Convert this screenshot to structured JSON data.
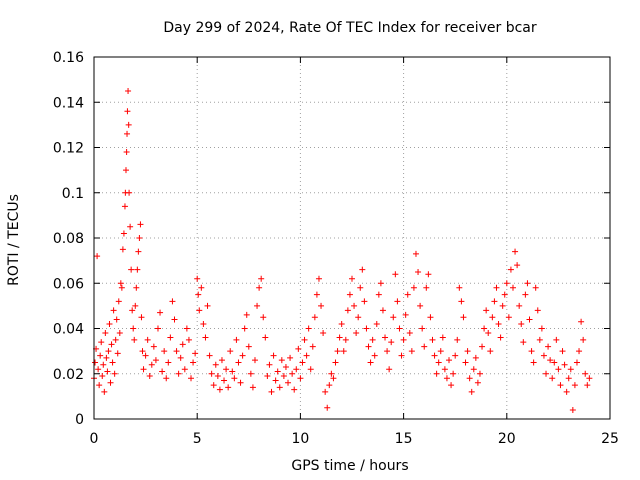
{
  "chart_data": {
    "type": "scatter",
    "title": "Day 299 of 2024, Rate Of TEC Index for receiver bcar",
    "xlabel": "GPS time / hours",
    "ylabel": "ROTI / TECUs",
    "xlim": [
      0,
      25
    ],
    "ylim": [
      0,
      0.16
    ],
    "x_ticks": [
      0,
      5,
      10,
      15,
      20,
      25
    ],
    "x_tick_labels": [
      "0",
      "5",
      "10",
      "15",
      "20",
      "25"
    ],
    "y_ticks": [
      0,
      0.02,
      0.04,
      0.06,
      0.08,
      0.1,
      0.12,
      0.14,
      0.16
    ],
    "y_tick_labels": [
      "0",
      "0.02",
      "0.04",
      "0.06",
      "0.08",
      "0.1",
      "0.12",
      "0.14",
      "0.16"
    ],
    "grid": true,
    "marker": "+",
    "color": "#ff0000",
    "points": [
      [
        0.0,
        0.018
      ],
      [
        0.05,
        0.025
      ],
      [
        0.1,
        0.031
      ],
      [
        0.15,
        0.072
      ],
      [
        0.2,
        0.022
      ],
      [
        0.25,
        0.015
      ],
      [
        0.3,
        0.028
      ],
      [
        0.35,
        0.034
      ],
      [
        0.4,
        0.019
      ],
      [
        0.45,
        0.024
      ],
      [
        0.5,
        0.012
      ],
      [
        0.55,
        0.038
      ],
      [
        0.6,
        0.027
      ],
      [
        0.65,
        0.021
      ],
      [
        0.7,
        0.03
      ],
      [
        0.75,
        0.042
      ],
      [
        0.8,
        0.016
      ],
      [
        0.85,
        0.033
      ],
      [
        0.9,
        0.025
      ],
      [
        0.95,
        0.048
      ],
      [
        1.0,
        0.02
      ],
      [
        1.05,
        0.035
      ],
      [
        1.1,
        0.044
      ],
      [
        1.15,
        0.029
      ],
      [
        1.2,
        0.052
      ],
      [
        1.25,
        0.038
      ],
      [
        1.3,
        0.06
      ],
      [
        1.35,
        0.058
      ],
      [
        1.4,
        0.075
      ],
      [
        1.45,
        0.082
      ],
      [
        1.5,
        0.094
      ],
      [
        1.52,
        0.1
      ],
      [
        1.55,
        0.11
      ],
      [
        1.58,
        0.118
      ],
      [
        1.6,
        0.126
      ],
      [
        1.62,
        0.136
      ],
      [
        1.65,
        0.145
      ],
      [
        1.68,
        0.13
      ],
      [
        1.7,
        0.1
      ],
      [
        1.75,
        0.085
      ],
      [
        1.8,
        0.066
      ],
      [
        1.85,
        0.048
      ],
      [
        1.9,
        0.04
      ],
      [
        1.95,
        0.035
      ],
      [
        2.0,
        0.05
      ],
      [
        2.05,
        0.058
      ],
      [
        2.1,
        0.066
      ],
      [
        2.15,
        0.074
      ],
      [
        2.2,
        0.08
      ],
      [
        2.25,
        0.086
      ],
      [
        2.3,
        0.045
      ],
      [
        2.35,
        0.03
      ],
      [
        2.4,
        0.022
      ],
      [
        2.5,
        0.028
      ],
      [
        2.6,
        0.035
      ],
      [
        2.7,
        0.019
      ],
      [
        2.8,
        0.024
      ],
      [
        2.9,
        0.032
      ],
      [
        3.0,
        0.026
      ],
      [
        3.1,
        0.04
      ],
      [
        3.2,
        0.047
      ],
      [
        3.3,
        0.021
      ],
      [
        3.4,
        0.03
      ],
      [
        3.5,
        0.018
      ],
      [
        3.6,
        0.025
      ],
      [
        3.7,
        0.036
      ],
      [
        3.8,
        0.052
      ],
      [
        3.9,
        0.044
      ],
      [
        4.0,
        0.03
      ],
      [
        4.1,
        0.02
      ],
      [
        4.2,
        0.027
      ],
      [
        4.3,
        0.033
      ],
      [
        4.4,
        0.022
      ],
      [
        4.5,
        0.04
      ],
      [
        4.6,
        0.035
      ],
      [
        4.7,
        0.018
      ],
      [
        4.8,
        0.025
      ],
      [
        4.9,
        0.029
      ],
      [
        5.0,
        0.062
      ],
      [
        5.05,
        0.055
      ],
      [
        5.1,
        0.048
      ],
      [
        5.2,
        0.058
      ],
      [
        5.3,
        0.042
      ],
      [
        5.4,
        0.036
      ],
      [
        5.5,
        0.05
      ],
      [
        5.6,
        0.028
      ],
      [
        5.7,
        0.02
      ],
      [
        5.8,
        0.015
      ],
      [
        5.9,
        0.024
      ],
      [
        6.0,
        0.019
      ],
      [
        6.1,
        0.013
      ],
      [
        6.2,
        0.026
      ],
      [
        6.3,
        0.017
      ],
      [
        6.4,
        0.022
      ],
      [
        6.5,
        0.014
      ],
      [
        6.6,
        0.03
      ],
      [
        6.7,
        0.021
      ],
      [
        6.8,
        0.018
      ],
      [
        6.9,
        0.035
      ],
      [
        7.0,
        0.025
      ],
      [
        7.1,
        0.016
      ],
      [
        7.2,
        0.028
      ],
      [
        7.3,
        0.04
      ],
      [
        7.4,
        0.046
      ],
      [
        7.5,
        0.032
      ],
      [
        7.6,
        0.02
      ],
      [
        7.7,
        0.014
      ],
      [
        7.8,
        0.026
      ],
      [
        7.9,
        0.05
      ],
      [
        8.0,
        0.058
      ],
      [
        8.1,
        0.062
      ],
      [
        8.2,
        0.045
      ],
      [
        8.3,
        0.036
      ],
      [
        8.4,
        0.019
      ],
      [
        8.5,
        0.024
      ],
      [
        8.6,
        0.012
      ],
      [
        8.7,
        0.028
      ],
      [
        8.8,
        0.017
      ],
      [
        8.9,
        0.021
      ],
      [
        9.0,
        0.014
      ],
      [
        9.1,
        0.026
      ],
      [
        9.2,
        0.019
      ],
      [
        9.3,
        0.023
      ],
      [
        9.4,
        0.016
      ],
      [
        9.5,
        0.027
      ],
      [
        9.6,
        0.02
      ],
      [
        9.7,
        0.013
      ],
      [
        9.8,
        0.022
      ],
      [
        9.9,
        0.031
      ],
      [
        10.0,
        0.018
      ],
      [
        10.1,
        0.025
      ],
      [
        10.2,
        0.035
      ],
      [
        10.3,
        0.028
      ],
      [
        10.4,
        0.04
      ],
      [
        10.5,
        0.022
      ],
      [
        10.6,
        0.032
      ],
      [
        10.7,
        0.045
      ],
      [
        10.8,
        0.055
      ],
      [
        10.9,
        0.062
      ],
      [
        11.0,
        0.05
      ],
      [
        11.1,
        0.038
      ],
      [
        11.2,
        0.012
      ],
      [
        11.3,
        0.005
      ],
      [
        11.4,
        0.015
      ],
      [
        11.5,
        0.02
      ],
      [
        11.6,
        0.018
      ],
      [
        11.7,
        0.025
      ],
      [
        11.8,
        0.03
      ],
      [
        11.9,
        0.036
      ],
      [
        12.0,
        0.042
      ],
      [
        12.1,
        0.03
      ],
      [
        12.2,
        0.035
      ],
      [
        12.3,
        0.048
      ],
      [
        12.4,
        0.055
      ],
      [
        12.5,
        0.062
      ],
      [
        12.6,
        0.05
      ],
      [
        12.7,
        0.038
      ],
      [
        12.8,
        0.045
      ],
      [
        12.9,
        0.058
      ],
      [
        13.0,
        0.066
      ],
      [
        13.1,
        0.052
      ],
      [
        13.2,
        0.04
      ],
      [
        13.3,
        0.032
      ],
      [
        13.4,
        0.025
      ],
      [
        13.5,
        0.035
      ],
      [
        13.6,
        0.028
      ],
      [
        13.7,
        0.042
      ],
      [
        13.8,
        0.055
      ],
      [
        13.9,
        0.06
      ],
      [
        14.0,
        0.048
      ],
      [
        14.1,
        0.036
      ],
      [
        14.2,
        0.03
      ],
      [
        14.3,
        0.022
      ],
      [
        14.4,
        0.034
      ],
      [
        14.5,
        0.045
      ],
      [
        14.6,
        0.064
      ],
      [
        14.7,
        0.052
      ],
      [
        14.8,
        0.04
      ],
      [
        14.9,
        0.028
      ],
      [
        15.0,
        0.035
      ],
      [
        15.1,
        0.046
      ],
      [
        15.2,
        0.055
      ],
      [
        15.3,
        0.038
      ],
      [
        15.4,
        0.03
      ],
      [
        15.5,
        0.058
      ],
      [
        15.6,
        0.073
      ],
      [
        15.7,
        0.065
      ],
      [
        15.8,
        0.05
      ],
      [
        15.9,
        0.04
      ],
      [
        16.0,
        0.032
      ],
      [
        16.1,
        0.058
      ],
      [
        16.2,
        0.064
      ],
      [
        16.3,
        0.045
      ],
      [
        16.4,
        0.035
      ],
      [
        16.5,
        0.028
      ],
      [
        16.6,
        0.02
      ],
      [
        16.7,
        0.025
      ],
      [
        16.8,
        0.03
      ],
      [
        16.9,
        0.036
      ],
      [
        17.0,
        0.022
      ],
      [
        17.1,
        0.018
      ],
      [
        17.2,
        0.026
      ],
      [
        17.3,
        0.015
      ],
      [
        17.4,
        0.02
      ],
      [
        17.5,
        0.028
      ],
      [
        17.6,
        0.035
      ],
      [
        17.7,
        0.058
      ],
      [
        17.8,
        0.052
      ],
      [
        17.9,
        0.045
      ],
      [
        18.0,
        0.025
      ],
      [
        18.1,
        0.03
      ],
      [
        18.2,
        0.018
      ],
      [
        18.3,
        0.012
      ],
      [
        18.4,
        0.022
      ],
      [
        18.5,
        0.027
      ],
      [
        18.6,
        0.016
      ],
      [
        18.7,
        0.02
      ],
      [
        18.8,
        0.032
      ],
      [
        18.9,
        0.04
      ],
      [
        19.0,
        0.048
      ],
      [
        19.1,
        0.038
      ],
      [
        19.2,
        0.03
      ],
      [
        19.3,
        0.045
      ],
      [
        19.4,
        0.052
      ],
      [
        19.5,
        0.058
      ],
      [
        19.6,
        0.042
      ],
      [
        19.7,
        0.036
      ],
      [
        19.8,
        0.05
      ],
      [
        19.9,
        0.055
      ],
      [
        20.0,
        0.06
      ],
      [
        20.1,
        0.045
      ],
      [
        20.2,
        0.066
      ],
      [
        20.3,
        0.058
      ],
      [
        20.4,
        0.074
      ],
      [
        20.5,
        0.068
      ],
      [
        20.6,
        0.05
      ],
      [
        20.7,
        0.042
      ],
      [
        20.8,
        0.034
      ],
      [
        20.9,
        0.055
      ],
      [
        21.0,
        0.06
      ],
      [
        21.1,
        0.044
      ],
      [
        21.2,
        0.03
      ],
      [
        21.3,
        0.025
      ],
      [
        21.4,
        0.058
      ],
      [
        21.5,
        0.048
      ],
      [
        21.6,
        0.035
      ],
      [
        21.7,
        0.04
      ],
      [
        21.8,
        0.028
      ],
      [
        21.9,
        0.02
      ],
      [
        22.0,
        0.032
      ],
      [
        22.1,
        0.026
      ],
      [
        22.2,
        0.018
      ],
      [
        22.3,
        0.025
      ],
      [
        22.4,
        0.035
      ],
      [
        22.5,
        0.022
      ],
      [
        22.6,
        0.015
      ],
      [
        22.7,
        0.03
      ],
      [
        22.8,
        0.024
      ],
      [
        22.9,
        0.012
      ],
      [
        23.0,
        0.018
      ],
      [
        23.1,
        0.022
      ],
      [
        23.2,
        0.004
      ],
      [
        23.3,
        0.015
      ],
      [
        23.4,
        0.025
      ],
      [
        23.5,
        0.03
      ],
      [
        23.6,
        0.043
      ],
      [
        23.7,
        0.035
      ],
      [
        23.8,
        0.02
      ],
      [
        23.9,
        0.015
      ],
      [
        24.0,
        0.018
      ]
    ]
  }
}
